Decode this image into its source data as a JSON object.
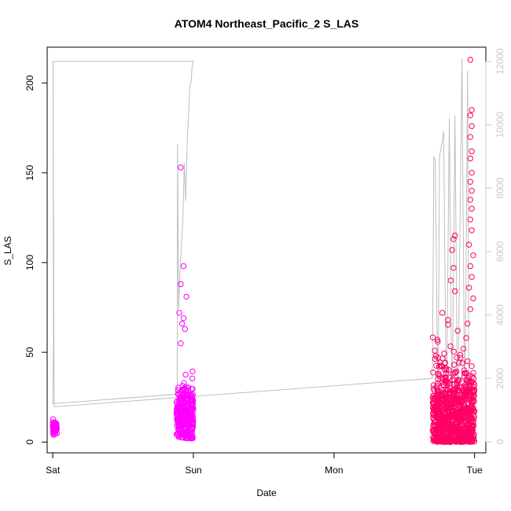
{
  "chart_data": {
    "type": "scatter",
    "title": "ATOM4 Northeast_Pacific_2 S_LAS",
    "xlabel": "Date",
    "ylabel": "S_LAS",
    "x_ticks": [
      "Sat",
      "Sun",
      "Mon",
      "Tue"
    ],
    "x_tick_pos": [
      0,
      1,
      2,
      3
    ],
    "xlim": [
      -0.04,
      3.08
    ],
    "ylim": [
      -6,
      220
    ],
    "y_ticks": [
      0,
      50,
      100,
      150,
      200
    ],
    "y2lim": [
      -350,
      12450
    ],
    "y2_ticks": [
      0,
      2000,
      4000,
      6000,
      8000,
      10000,
      12000
    ],
    "colors": {
      "points_early": "#ff00ff",
      "points_late": "#ff0066",
      "right_axis": "#c8c8c8",
      "altitude_line": "#bebebe"
    },
    "series": [
      {
        "y_axis": "left",
        "mark": "open-circle",
        "clusters": [
          {
            "x": [
              0.0,
              0.03
            ],
            "n": 60,
            "y_min": 3,
            "y_max": 15,
            "y_mean": 8
          },
          {
            "x": [
              0.88,
              1.0
            ],
            "n": 320,
            "y_min": 2,
            "y_max": 45,
            "y_mean": 15
          },
          {
            "x": [
              2.7,
              3.0
            ],
            "n": 900,
            "y_min": 0,
            "y_max": 70,
            "y_mean": 12
          }
        ],
        "points": [
          {
            "x": 0.91,
            "y": 153
          },
          {
            "x": 0.93,
            "y": 98
          },
          {
            "x": 0.91,
            "y": 88
          },
          {
            "x": 0.95,
            "y": 81
          },
          {
            "x": 0.9,
            "y": 72
          },
          {
            "x": 0.93,
            "y": 69
          },
          {
            "x": 0.92,
            "y": 66
          },
          {
            "x": 0.94,
            "y": 63
          },
          {
            "x": 0.91,
            "y": 55
          },
          {
            "x": 2.86,
            "y": 115
          },
          {
            "x": 2.85,
            "y": 113
          },
          {
            "x": 2.84,
            "y": 107
          },
          {
            "x": 2.85,
            "y": 97
          },
          {
            "x": 2.83,
            "y": 90
          },
          {
            "x": 2.86,
            "y": 84
          },
          {
            "x": 2.77,
            "y": 72
          },
          {
            "x": 2.81,
            "y": 68
          },
          {
            "x": 2.74,
            "y": 47
          },
          {
            "x": 2.97,
            "y": 213
          },
          {
            "x": 2.98,
            "y": 185
          },
          {
            "x": 2.97,
            "y": 182
          },
          {
            "x": 2.98,
            "y": 176
          },
          {
            "x": 2.97,
            "y": 170
          },
          {
            "x": 2.98,
            "y": 162
          },
          {
            "x": 2.97,
            "y": 158
          },
          {
            "x": 2.98,
            "y": 150
          },
          {
            "x": 2.97,
            "y": 145
          },
          {
            "x": 2.98,
            "y": 140
          },
          {
            "x": 2.97,
            "y": 135
          },
          {
            "x": 2.98,
            "y": 130
          },
          {
            "x": 2.97,
            "y": 124
          },
          {
            "x": 2.98,
            "y": 118
          },
          {
            "x": 2.96,
            "y": 110
          },
          {
            "x": 2.99,
            "y": 104
          },
          {
            "x": 2.97,
            "y": 98
          },
          {
            "x": 2.98,
            "y": 92
          },
          {
            "x": 2.96,
            "y": 86
          },
          {
            "x": 2.99,
            "y": 80
          },
          {
            "x": 2.97,
            "y": 74
          },
          {
            "x": 2.95,
            "y": 66
          },
          {
            "x": 2.94,
            "y": 58
          },
          {
            "x": 2.92,
            "y": 52
          },
          {
            "x": 2.9,
            "y": 47
          },
          {
            "x": 2.88,
            "y": 62
          },
          {
            "x": 2.8,
            "y": 40
          },
          {
            "x": 2.79,
            "y": 44
          }
        ]
      },
      {
        "y_axis": "right",
        "mark": "line",
        "points": [
          {
            "x": 0.0,
            "y": 12000
          },
          {
            "x": 1.0,
            "y": 12000
          },
          {
            "x": 0.99,
            "y": 11800
          },
          {
            "x": 0.985,
            "y": 11400
          },
          {
            "x": 0.975,
            "y": 11250
          },
          {
            "x": 0.965,
            "y": 10200
          },
          {
            "x": 0.955,
            "y": 9400
          },
          {
            "x": 0.945,
            "y": 7600
          },
          {
            "x": 0.935,
            "y": 8800
          },
          {
            "x": 0.925,
            "y": 7000
          },
          {
            "x": 0.915,
            "y": 6200
          },
          {
            "x": 0.905,
            "y": 5400
          },
          {
            "x": 0.895,
            "y": 4200
          },
          {
            "x": 0.887,
            "y": 9400
          },
          {
            "x": 0.885,
            "y": 1500
          },
          {
            "x": 0.0,
            "y": 1200
          },
          {
            "x": 0.005,
            "y": 3000
          },
          {
            "x": 0.002,
            "y": 12000
          },
          {
            "x": 0.01,
            "y": 1100
          },
          {
            "x": 2.7,
            "y": 2000
          },
          {
            "x": 2.71,
            "y": 9000
          },
          {
            "x": 2.72,
            "y": 8900
          },
          {
            "x": 2.74,
            "y": 500
          },
          {
            "x": 2.75,
            "y": 9000
          },
          {
            "x": 2.77,
            "y": 9500
          },
          {
            "x": 2.78,
            "y": 9800
          },
          {
            "x": 2.8,
            "y": 700
          },
          {
            "x": 2.82,
            "y": 10200
          },
          {
            "x": 2.84,
            "y": 500
          },
          {
            "x": 2.86,
            "y": 10300
          },
          {
            "x": 2.88,
            "y": 400
          },
          {
            "x": 2.91,
            "y": 12100
          },
          {
            "x": 2.93,
            "y": 500
          },
          {
            "x": 2.95,
            "y": 11700
          },
          {
            "x": 2.96,
            "y": 400
          }
        ]
      }
    ]
  }
}
